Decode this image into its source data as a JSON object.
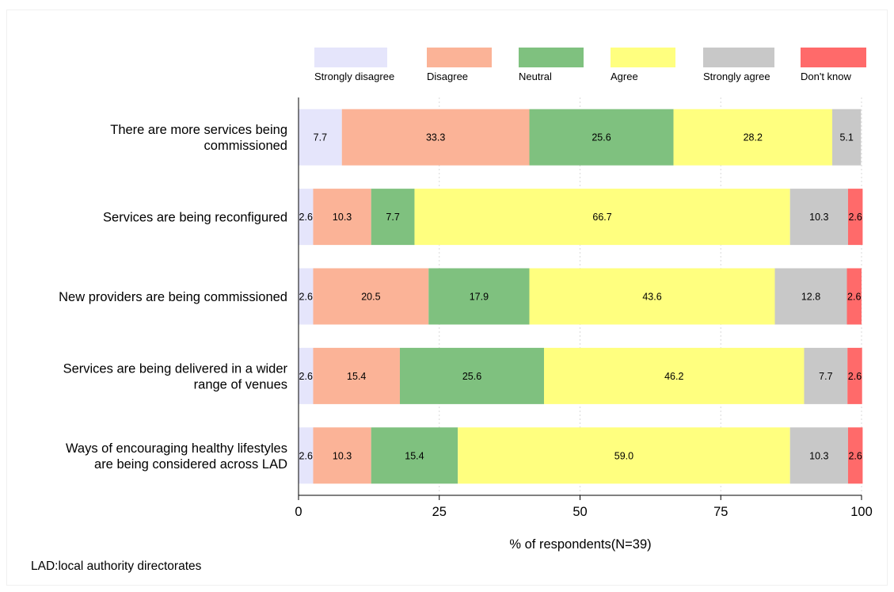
{
  "chart_data": {
    "type": "bar",
    "orientation": "horizontal",
    "stacked": true,
    "categories": [
      [
        "There are more services being",
        "commissioned"
      ],
      [
        "Services are being reconfigured"
      ],
      [
        "New providers are being commissioned"
      ],
      [
        "Services are being delivered in a wider",
        "range of venues"
      ],
      [
        "Ways of encouraging healthy lifestyles",
        "are being considered across LAD"
      ]
    ],
    "series": [
      {
        "name": "Strongly disagree",
        "color": "#e5e5fb",
        "values": [
          7.7,
          2.6,
          2.6,
          2.6,
          2.6
        ]
      },
      {
        "name": "Disagree",
        "color": "#fbb397",
        "values": [
          33.3,
          10.3,
          20.5,
          15.4,
          10.3
        ]
      },
      {
        "name": "Neutral",
        "color": "#7fc17f",
        "values": [
          25.6,
          7.7,
          17.9,
          25.6,
          15.4
        ]
      },
      {
        "name": "Agree",
        "color": "#ffff7f",
        "values": [
          28.2,
          66.7,
          43.6,
          46.2,
          59.0
        ]
      },
      {
        "name": "Strongly agree",
        "color": "#c8c8c8",
        "values": [
          5.1,
          10.3,
          12.8,
          7.7,
          10.3
        ]
      },
      {
        "name": "Don't know",
        "color": "#ff6a6a",
        "values": [
          0,
          2.6,
          2.6,
          2.6,
          2.6
        ]
      }
    ],
    "xlabel": "% of respondents(N=39)",
    "xlim": [
      0,
      100
    ],
    "xticks": [
      0,
      25,
      50,
      75,
      100
    ],
    "grid": true,
    "legend": "top"
  },
  "footnote": "LAD:local authority directorates"
}
